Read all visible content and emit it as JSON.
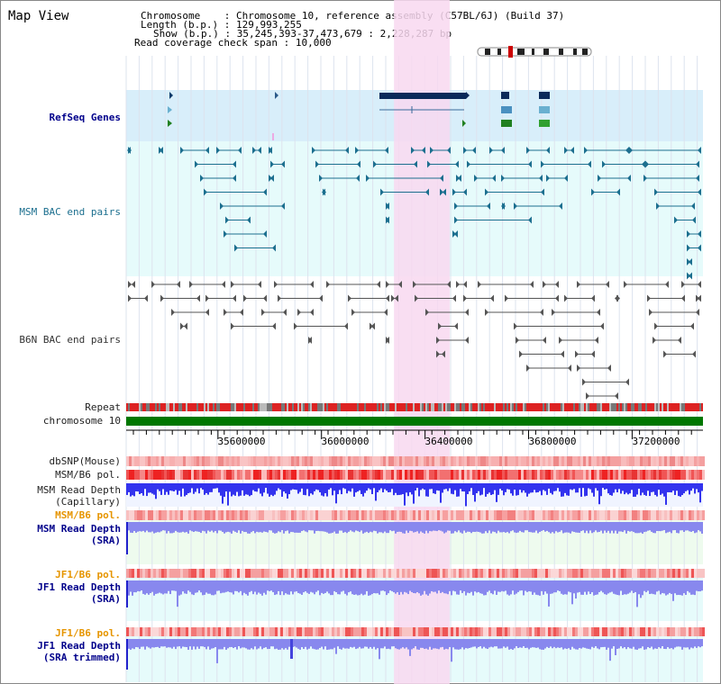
{
  "window": {
    "title": "Map View"
  },
  "header": {
    "chromosome_label": "Chromosome",
    "chromosome_value": "Chromosome 10, reference assembly (C57BL/6J) (Build 37)",
    "length_label": "Length (b.p.)",
    "length_value": "129,993,255",
    "show_label": "Show (b.p.)",
    "show_value": "35,245,393-37,473,679 : 2,228,287 bp",
    "span_label": "Read coverage check span",
    "span_value": "10,000"
  },
  "tracks": {
    "refseq": "RefSeq Genes",
    "msm_bac": "MSM BAC end pairs",
    "b6n_bac": "B6N BAC end pairs",
    "repeat": "Repeat",
    "chromosome": "chromosome 10",
    "dbsnp": "dbSNP(Mouse)",
    "msm_b6_pol": "MSM/B6 pol.",
    "msm_depth_cap_1": "MSM Read Depth",
    "msm_depth_cap_2": "(Capillary)",
    "msm_b6_pol_2": "MSM/B6 pol.",
    "msm_depth_sra_1": "MSM Read Depth",
    "msm_depth_sra_2": "(SRA)",
    "jf1_b6_pol": "JF1/B6 pol.",
    "jf1_depth_sra_1": "JF1 Read Depth",
    "jf1_depth_sra_2": "(SRA)",
    "jf1_b6_pol_2": "JF1/B6 pol.",
    "jf1_trim_1": "JF1 Read Depth",
    "jf1_trim_2": "(SRA trimmed)"
  },
  "axis": {
    "ticks": [
      "35600000",
      "36000000",
      "36400000",
      "36800000",
      "37200000"
    ],
    "tick_values": [
      35600000,
      36000000,
      36400000,
      36800000,
      37200000
    ],
    "range": [
      35245393,
      37473679
    ]
  },
  "highlight": {
    "start_bp": 36280000,
    "end_bp": 36495000
  },
  "colors": {
    "highlight": "#f8d8f0",
    "refseq_bg": "#d8eefa",
    "track_bg": "#e6fbfb",
    "chromosome": "#007700",
    "pol_red": "#ee2222",
    "depth_blue": "#3333ee",
    "depth_light": "#8888ee",
    "label_blue": "#00008b",
    "label_orange": "#e69500"
  }
}
